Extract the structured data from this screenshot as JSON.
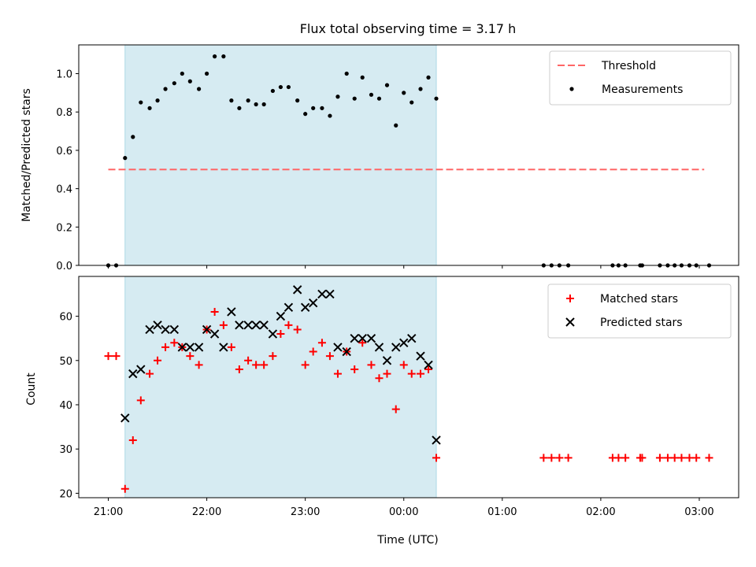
{
  "chart_data": [
    {
      "type": "scatter",
      "title": "Flux total observing time = 3.17 h",
      "ylabel": "Matched/Predicted stars",
      "ylim": [
        0,
        1.15
      ],
      "yticks": [
        0.0,
        0.2,
        0.4,
        0.6,
        0.8,
        1.0
      ],
      "ytick_labels": [
        "0.0",
        "0.2",
        "0.4",
        "0.6",
        "0.8",
        "1.0"
      ],
      "legend_position": "top-right",
      "highlight_span_hours": [
        21.17,
        24.33
      ],
      "highlight_color": "#add8e6",
      "threshold": {
        "name": "Threshold",
        "value": 0.5,
        "x_range_hours": [
          21.0,
          27.05
        ],
        "color": "#ff6666",
        "style": "dashed"
      },
      "series": [
        {
          "name": "Measurements",
          "color": "#000000",
          "marker": "dot",
          "x_hours": [
            21.0,
            21.08,
            21.17,
            21.25,
            21.33,
            21.42,
            21.5,
            21.58,
            21.67,
            21.75,
            21.83,
            21.92,
            22.0,
            22.08,
            22.17,
            22.25,
            22.33,
            22.42,
            22.5,
            22.58,
            22.67,
            22.75,
            22.83,
            22.92,
            23.0,
            23.08,
            23.17,
            23.25,
            23.33,
            23.42,
            23.5,
            23.58,
            23.67,
            23.75,
            23.83,
            23.92,
            24.0,
            24.08,
            24.17,
            24.25,
            24.33,
            25.42,
            25.5,
            25.58,
            25.67,
            26.12,
            26.18,
            26.25,
            26.4,
            26.42,
            26.6,
            26.68,
            26.75,
            26.82,
            26.9,
            26.97,
            27.1
          ],
          "y": [
            0.0,
            0.0,
            0.56,
            0.67,
            0.85,
            0.82,
            0.86,
            0.92,
            0.95,
            1.0,
            0.96,
            0.92,
            1.0,
            1.09,
            1.09,
            0.86,
            0.82,
            0.86,
            0.84,
            0.84,
            0.91,
            0.93,
            0.93,
            0.86,
            0.79,
            0.82,
            0.82,
            0.78,
            0.88,
            1.0,
            0.87,
            0.98,
            0.89,
            0.87,
            0.94,
            0.73,
            0.9,
            0.85,
            0.92,
            0.98,
            0.87,
            0.0,
            0.0,
            0.0,
            0.0,
            0.0,
            0.0,
            0.0,
            0.0,
            0.0,
            0.0,
            0.0,
            0.0,
            0.0,
            0.0,
            0.0,
            0.0
          ]
        }
      ]
    },
    {
      "type": "scatter",
      "xlabel": "Time (UTC)",
      "ylabel": "Count",
      "ylim": [
        19,
        69
      ],
      "yticks": [
        20,
        30,
        40,
        50,
        60
      ],
      "ytick_labels": [
        "20",
        "30",
        "40",
        "50",
        "60"
      ],
      "xlim_hours": [
        20.7,
        27.4
      ],
      "xticks_hours": [
        21,
        22,
        23,
        24,
        25,
        26,
        27
      ],
      "xtick_labels": [
        "21:00",
        "22:00",
        "23:00",
        "00:00",
        "01:00",
        "02:00",
        "03:00"
      ],
      "legend_position": "top-right",
      "highlight_span_hours": [
        21.17,
        24.33
      ],
      "series": [
        {
          "name": "Matched stars",
          "color": "#ff0000",
          "marker": "plus",
          "x_hours": [
            21.0,
            21.08,
            21.17,
            21.25,
            21.33,
            21.42,
            21.5,
            21.58,
            21.67,
            21.75,
            21.83,
            21.92,
            22.0,
            22.08,
            22.17,
            22.25,
            22.33,
            22.42,
            22.5,
            22.58,
            22.67,
            22.75,
            22.83,
            22.92,
            23.0,
            23.08,
            23.17,
            23.25,
            23.33,
            23.42,
            23.5,
            23.58,
            23.67,
            23.75,
            23.83,
            23.92,
            24.0,
            24.08,
            24.17,
            24.25,
            24.33,
            25.42,
            25.5,
            25.58,
            25.67,
            26.12,
            26.18,
            26.25,
            26.4,
            26.42,
            26.6,
            26.68,
            26.75,
            26.82,
            26.9,
            26.97,
            27.1
          ],
          "y": [
            51,
            51,
            21,
            32,
            41,
            47,
            50,
            53,
            54,
            53,
            51,
            49,
            57,
            61,
            58,
            53,
            48,
            50,
            49,
            49,
            51,
            56,
            58,
            57,
            49,
            52,
            54,
            51,
            47,
            52,
            48,
            54,
            49,
            46,
            47,
            39,
            49,
            47,
            47,
            48,
            28,
            28,
            28,
            28,
            28,
            28,
            28,
            28,
            28,
            28,
            28,
            28,
            28,
            28,
            28,
            28,
            28
          ]
        },
        {
          "name": "Predicted stars",
          "color": "#000000",
          "marker": "x",
          "x_hours": [
            21.17,
            21.25,
            21.33,
            21.42,
            21.5,
            21.58,
            21.67,
            21.75,
            21.83,
            21.92,
            22.0,
            22.08,
            22.17,
            22.25,
            22.33,
            22.42,
            22.5,
            22.58,
            22.67,
            22.75,
            22.83,
            22.92,
            23.0,
            23.08,
            23.17,
            23.25,
            23.33,
            23.42,
            23.5,
            23.58,
            23.67,
            23.75,
            23.83,
            23.92,
            24.0,
            24.08,
            24.17,
            24.25,
            24.33
          ],
          "y": [
            37,
            47,
            48,
            57,
            58,
            57,
            57,
            53,
            53,
            53,
            57,
            56,
            53,
            61,
            58,
            58,
            58,
            58,
            56,
            60,
            62,
            66,
            62,
            63,
            65,
            65,
            53,
            52,
            55,
            55,
            55,
            53,
            50,
            53,
            54,
            55,
            51,
            49,
            32
          ]
        }
      ]
    }
  ]
}
